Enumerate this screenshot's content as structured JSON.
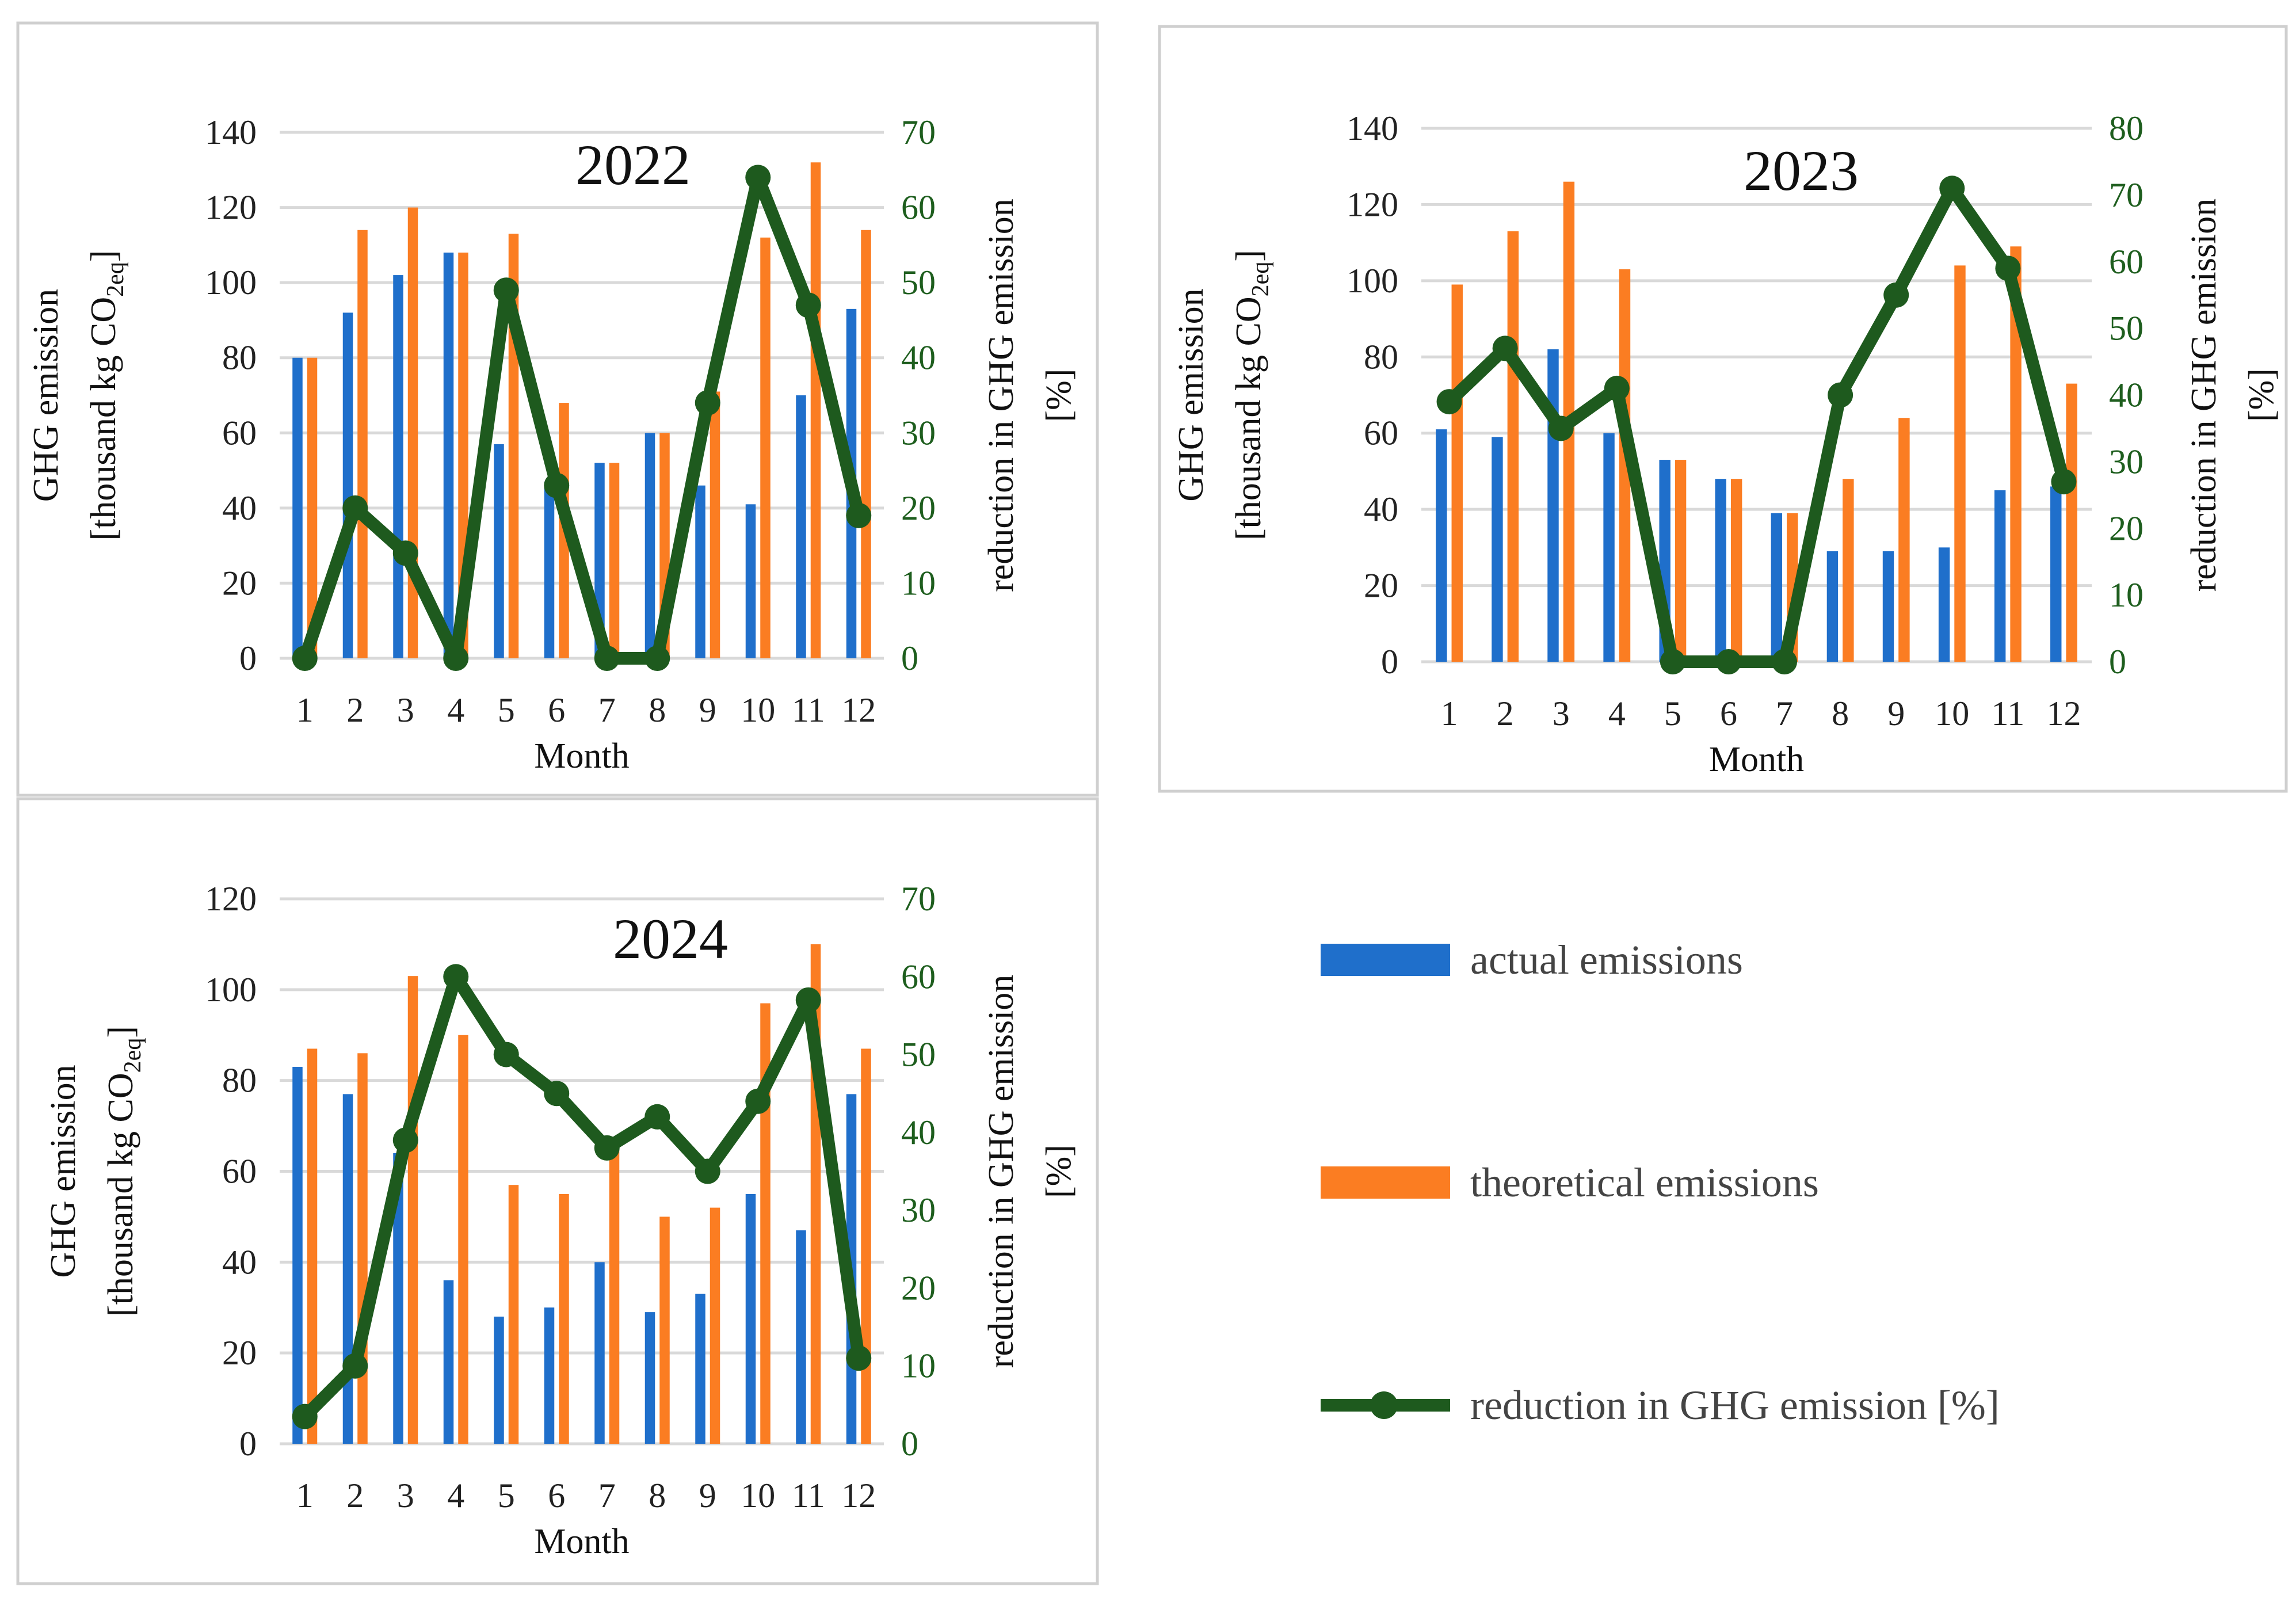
{
  "chart_data": [
    {
      "type": "bar+line",
      "title": "2022",
      "xlabel": "Month",
      "ylabel": "GHG emission [thousand kg CO2eq]",
      "ylabel_line1": "GHG emission",
      "ylabel_line2": "[thousand kg CO",
      "ylabel_sub": "2eq",
      "ylabel_end": "]",
      "y2label": "reduction in GHG emission [%]",
      "y2label_line1": "reduction in GHG emission",
      "y2label_line2": "[%]",
      "categories": [
        "1",
        "2",
        "3",
        "4",
        "5",
        "6",
        "7",
        "8",
        "9",
        "10",
        "11",
        "12"
      ],
      "ylim": [
        0,
        140
      ],
      "yticks": [
        0,
        20,
        40,
        60,
        80,
        100,
        120,
        140
      ],
      "y2lim": [
        0,
        70
      ],
      "y2ticks": [
        0,
        10,
        20,
        30,
        40,
        50,
        60,
        70
      ],
      "grid": true,
      "series": [
        {
          "name": "actual emissions",
          "type": "bar",
          "axis": "left",
          "values": [
            80,
            92,
            102,
            108,
            57,
            47,
            52,
            60,
            46,
            41,
            70,
            93
          ]
        },
        {
          "name": "theoretical emissions",
          "type": "bar",
          "axis": "left",
          "values": [
            80,
            114,
            120,
            108,
            113,
            68,
            52,
            60,
            71,
            112,
            132,
            114
          ]
        },
        {
          "name": "reduction in GHG emission [%]",
          "type": "line",
          "axis": "right",
          "values": [
            0,
            20,
            14,
            0,
            49,
            23,
            0,
            0,
            34,
            64,
            47,
            19
          ]
        }
      ]
    },
    {
      "type": "bar+line",
      "title": "2023",
      "xlabel": "Month",
      "ylabel": "GHG emission [thousand kg CO2eq]",
      "ylabel_line1": "GHG emission",
      "ylabel_line2": "[thousand kg CO",
      "ylabel_sub": "2eq",
      "ylabel_end": "]",
      "y2label": "reduction in GHG emission [%]",
      "y2label_line1": "reduction in GHG emission",
      "y2label_line2": "[%]",
      "categories": [
        "1",
        "2",
        "3",
        "4",
        "5",
        "6",
        "7",
        "8",
        "9",
        "10",
        "11",
        "12"
      ],
      "ylim": [
        0,
        140
      ],
      "yticks": [
        0,
        20,
        40,
        60,
        80,
        100,
        120,
        140
      ],
      "y2lim": [
        0,
        80
      ],
      "y2ticks": [
        0,
        10,
        20,
        30,
        40,
        50,
        60,
        70,
        80
      ],
      "grid": true,
      "series": [
        {
          "name": "actual emissions",
          "type": "bar",
          "axis": "left",
          "values": [
            61,
            59,
            82,
            60,
            53,
            48,
            39,
            29,
            29,
            30,
            45,
            46
          ]
        },
        {
          "name": "theoretical emissions",
          "type": "bar",
          "axis": "left",
          "values": [
            99,
            113,
            126,
            103,
            53,
            48,
            39,
            48,
            64,
            104,
            109,
            73
          ]
        },
        {
          "name": "reduction in GHG emission [%]",
          "type": "line",
          "axis": "right",
          "values": [
            39,
            47,
            35,
            41,
            0,
            0,
            0,
            40,
            55,
            71,
            59,
            27
          ]
        }
      ]
    },
    {
      "type": "bar+line",
      "title": "2024",
      "xlabel": "Month",
      "ylabel": "GHG emission [thousand kg CO2eq]",
      "ylabel_line1": "GHG emission",
      "ylabel_line2": "[thousand kg CO",
      "ylabel_sub": "2eq",
      "ylabel_end": "]",
      "y2label": "reduction in GHG emission [%]",
      "y2label_line1": "reduction in GHG emission",
      "y2label_line2": "[%]",
      "categories": [
        "1",
        "2",
        "3",
        "4",
        "5",
        "6",
        "7",
        "8",
        "9",
        "10",
        "11",
        "12"
      ],
      "ylim": [
        0,
        120
      ],
      "yticks": [
        0,
        20,
        40,
        60,
        80,
        100,
        120
      ],
      "y2lim": [
        0,
        70
      ],
      "y2ticks": [
        0,
        10,
        20,
        30,
        40,
        50,
        60,
        70
      ],
      "grid": true,
      "series": [
        {
          "name": "actual emissions",
          "type": "bar",
          "axis": "left",
          "values": [
            83,
            77,
            64,
            36,
            28,
            30,
            40,
            29,
            33,
            55,
            47,
            77
          ]
        },
        {
          "name": "theoretical emissions",
          "type": "bar",
          "axis": "left",
          "values": [
            87,
            86,
            103,
            90,
            57,
            55,
            65,
            50,
            52,
            97,
            110,
            87
          ]
        },
        {
          "name": "reduction in GHG emission [%]",
          "type": "line",
          "axis": "right",
          "values": [
            3.5,
            10,
            39,
            60,
            50,
            45,
            38,
            42,
            35,
            44,
            57,
            11
          ]
        }
      ]
    }
  ],
  "legend": {
    "placement": "bottom-right",
    "items": [
      {
        "label": "actual emissions",
        "kind": "bar"
      },
      {
        "label": "theoretical emissions",
        "kind": "bar"
      },
      {
        "label": "reduction in GHG emission [%]",
        "kind": "line"
      }
    ]
  },
  "colors": {
    "actual": "#1f6fcb",
    "theoretical": "#fb7d22",
    "reduction": "#1e5a1e",
    "grid": "#d9d9d9",
    "frame": "#cfcfcf"
  }
}
